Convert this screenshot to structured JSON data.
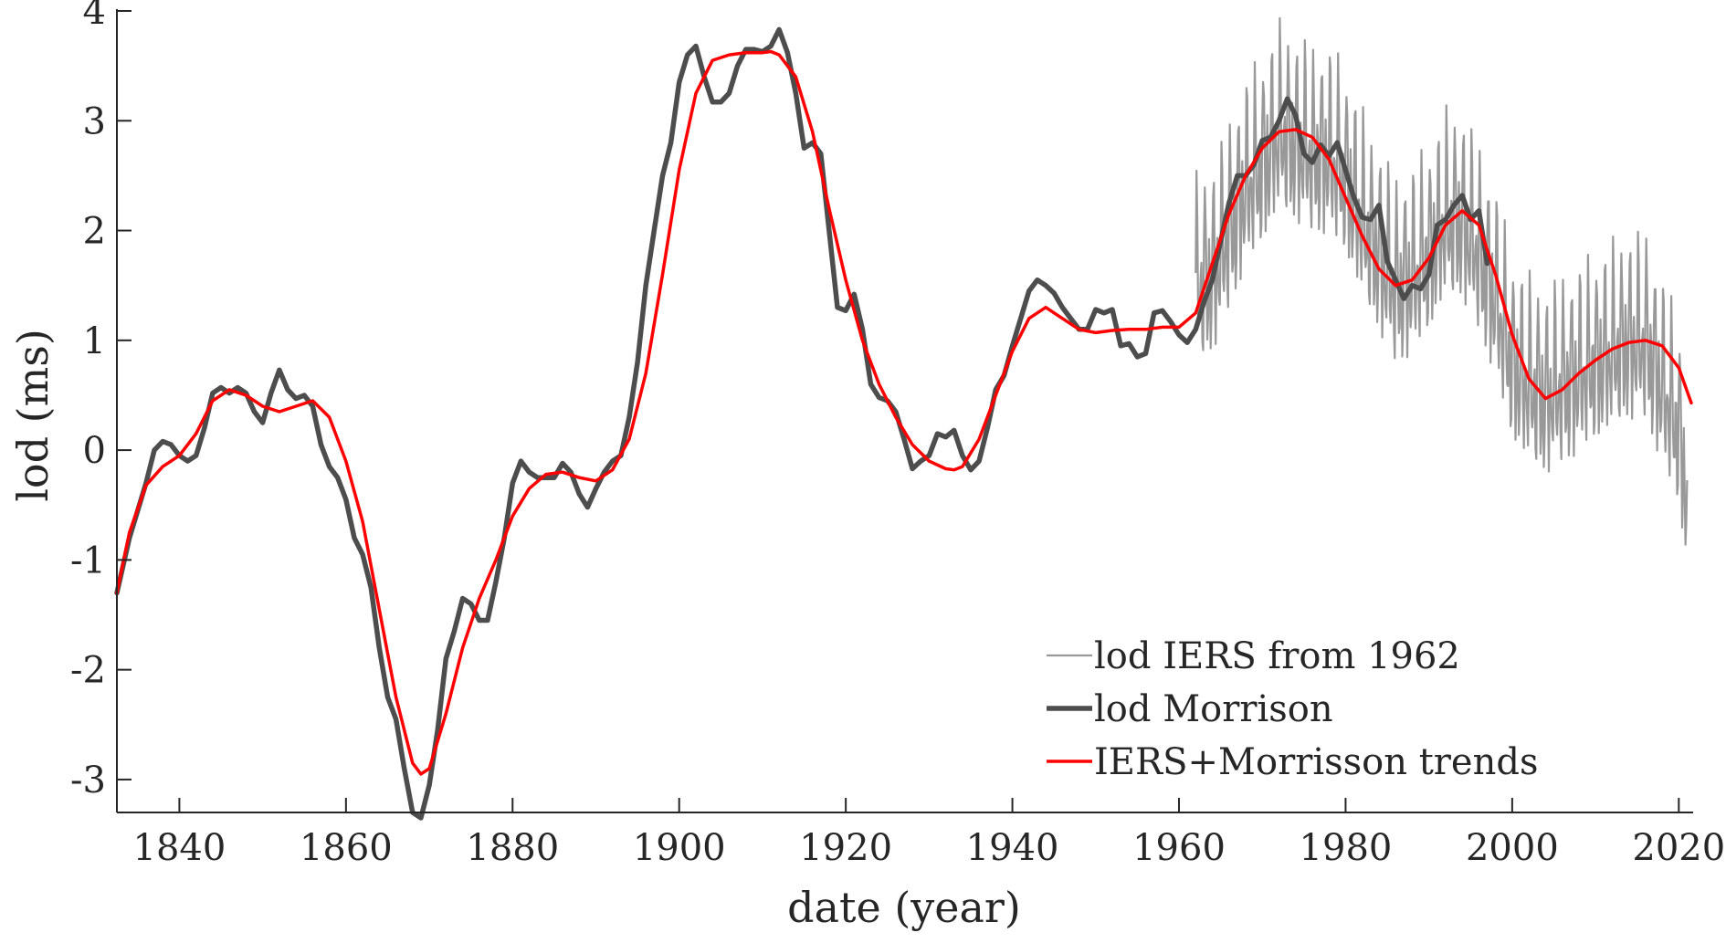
{
  "chart_data": {
    "type": "line",
    "xlabel": "date (year)",
    "ylabel": "lod (ms)",
    "xlim": [
      1832.5,
      2021.5
    ],
    "ylim": [
      -3.3,
      4.0
    ],
    "xticks": [
      1840,
      1860,
      1880,
      1900,
      1920,
      1940,
      1960,
      1980,
      2000,
      2020
    ],
    "yticks": [
      4,
      3,
      2,
      1,
      0,
      -1,
      -2,
      -3
    ],
    "grid": false,
    "legend_position": "bottom-right",
    "colors": {
      "iers": "#999999",
      "morrison": "#4d4d4d",
      "trend": "#ff0000",
      "axis": "#262626"
    },
    "series": [
      {
        "name": "lod IERS from 1962",
        "style": "thin",
        "x": [
          1962,
          1964,
          1966,
          1968,
          1970,
          1972,
          1974,
          1976,
          1978,
          1980,
          1982,
          1984,
          1986,
          1988,
          1990,
          1992,
          1994,
          1996,
          1998,
          2000,
          2002,
          2004,
          2006,
          2008,
          2010,
          2012,
          2014,
          2016,
          2018,
          2020,
          2021
        ],
        "y": [
          1.5,
          1.6,
          2.0,
          2.4,
          2.6,
          2.9,
          2.8,
          2.7,
          2.7,
          2.5,
          2.1,
          1.8,
          1.5,
          1.6,
          1.8,
          2.1,
          2.1,
          1.8,
          1.4,
          0.8,
          0.6,
          0.5,
          0.6,
          0.7,
          0.8,
          0.9,
          1.0,
          1.0,
          0.6,
          0.2,
          -0.4
        ]
      },
      {
        "name": "lod Morrison",
        "style": "thick",
        "x": [
          1832.5,
          1834,
          1836,
          1837,
          1838,
          1839,
          1840,
          1841,
          1842,
          1843,
          1844,
          1845,
          1846,
          1847,
          1848,
          1849,
          1850,
          1851,
          1852,
          1853,
          1854,
          1855,
          1856,
          1857,
          1858,
          1859,
          1860,
          1861,
          1862,
          1863,
          1864,
          1865,
          1866,
          1867,
          1868,
          1869,
          1870,
          1871,
          1872,
          1873,
          1874,
          1875,
          1876,
          1877,
          1878,
          1879,
          1880,
          1881,
          1882,
          1883,
          1884,
          1885,
          1886,
          1887,
          1888,
          1889,
          1890,
          1891,
          1892,
          1893,
          1894,
          1895,
          1896,
          1897,
          1898,
          1899,
          1900,
          1901,
          1902,
          1903,
          1904,
          1905,
          1906,
          1907,
          1908,
          1909,
          1910,
          1911,
          1912,
          1913,
          1914,
          1915,
          1916,
          1917,
          1918,
          1919,
          1920,
          1921,
          1922,
          1923,
          1924,
          1925,
          1926,
          1927,
          1928,
          1929,
          1930,
          1931,
          1932,
          1933,
          1934,
          1935,
          1936,
          1937,
          1938,
          1939,
          1940,
          1941,
          1942,
          1943,
          1944,
          1945,
          1946,
          1947,
          1948,
          1949,
          1950,
          1951,
          1952,
          1953,
          1954,
          1955,
          1956,
          1957,
          1958,
          1959,
          1960,
          1961,
          1962,
          1963,
          1964,
          1965,
          1966,
          1967,
          1968,
          1969,
          1970,
          1971,
          1972,
          1973,
          1974,
          1975,
          1976,
          1977,
          1978,
          1979,
          1980,
          1981,
          1982,
          1983,
          1984,
          1985,
          1986,
          1987,
          1988,
          1989,
          1990,
          1991,
          1992,
          1993,
          1994,
          1995,
          1996,
          1997
        ],
        "y": [
          -1.3,
          -0.8,
          -0.3,
          0.0,
          0.08,
          0.05,
          -0.05,
          -0.1,
          -0.05,
          0.2,
          0.52,
          0.57,
          0.52,
          0.57,
          0.52,
          0.35,
          0.25,
          0.52,
          0.73,
          0.55,
          0.47,
          0.5,
          0.4,
          0.05,
          -0.15,
          -0.25,
          -0.45,
          -0.8,
          -0.95,
          -1.25,
          -1.8,
          -2.25,
          -2.45,
          -2.9,
          -3.3,
          -3.35,
          -3.05,
          -2.55,
          -1.9,
          -1.65,
          -1.35,
          -1.4,
          -1.55,
          -1.55,
          -1.2,
          -0.8,
          -0.3,
          -0.1,
          -0.2,
          -0.25,
          -0.25,
          -0.25,
          -0.12,
          -0.2,
          -0.4,
          -0.52,
          -0.35,
          -0.2,
          -0.1,
          -0.05,
          0.3,
          0.8,
          1.5,
          2.0,
          2.5,
          2.8,
          3.35,
          3.6,
          3.68,
          3.4,
          3.17,
          3.17,
          3.25,
          3.5,
          3.65,
          3.65,
          3.63,
          3.68,
          3.83,
          3.62,
          3.25,
          2.75,
          2.8,
          2.7,
          2.0,
          1.3,
          1.27,
          1.42,
          1.1,
          0.6,
          0.48,
          0.45,
          0.35,
          0.1,
          -0.17,
          -0.1,
          -0.05,
          0.15,
          0.12,
          0.18,
          -0.05,
          -0.18,
          -0.1,
          0.2,
          0.55,
          0.68,
          0.95,
          1.2,
          1.45,
          1.55,
          1.5,
          1.43,
          1.3,
          1.2,
          1.1,
          1.1,
          1.28,
          1.25,
          1.28,
          0.95,
          0.97,
          0.85,
          0.88,
          1.25,
          1.27,
          1.17,
          1.05,
          0.98,
          1.1,
          1.35,
          1.55,
          1.9,
          2.25,
          2.5,
          2.5,
          2.6,
          2.82,
          2.85,
          3.0,
          3.2,
          3.05,
          2.7,
          2.62,
          2.78,
          2.68,
          2.8,
          2.55,
          2.3,
          2.12,
          2.1,
          2.23,
          1.72,
          1.55,
          1.38,
          1.5,
          1.47,
          1.6,
          2.05,
          2.1,
          2.23,
          2.32,
          2.1,
          2.18,
          1.7
        ]
      },
      {
        "name": "IERS+Morrisson trends",
        "style": "smooth",
        "x": [
          1832.5,
          1834,
          1836,
          1838,
          1840,
          1842,
          1844,
          1846,
          1848,
          1850,
          1852,
          1854,
          1856,
          1858,
          1860,
          1862,
          1864,
          1866,
          1868,
          1869,
          1870,
          1872,
          1874,
          1876,
          1878,
          1880,
          1882,
          1884,
          1886,
          1888,
          1890,
          1892,
          1894,
          1896,
          1898,
          1900,
          1902,
          1904,
          1906,
          1908,
          1910,
          1911,
          1912,
          1914,
          1916,
          1918,
          1920,
          1922,
          1924,
          1926,
          1928,
          1930,
          1932,
          1933,
          1934,
          1936,
          1938,
          1940,
          1942,
          1944,
          1946,
          1948,
          1950,
          1952,
          1954,
          1956,
          1958,
          1960,
          1962,
          1964,
          1966,
          1968,
          1970,
          1972,
          1974,
          1976,
          1978,
          1980,
          1982,
          1984,
          1986,
          1988,
          1990,
          1992,
          1994,
          1996,
          1998,
          2000,
          2002,
          2004,
          2006,
          2008,
          2010,
          2012,
          2014,
          2016,
          2018,
          2020,
          2021.5
        ],
        "y": [
          -1.3,
          -0.75,
          -0.32,
          -0.15,
          -0.05,
          0.15,
          0.45,
          0.55,
          0.5,
          0.4,
          0.35,
          0.4,
          0.45,
          0.3,
          -0.1,
          -0.65,
          -1.45,
          -2.25,
          -2.85,
          -2.95,
          -2.9,
          -2.4,
          -1.8,
          -1.35,
          -1.0,
          -0.6,
          -0.35,
          -0.22,
          -0.2,
          -0.25,
          -0.28,
          -0.18,
          0.1,
          0.7,
          1.6,
          2.55,
          3.25,
          3.55,
          3.6,
          3.62,
          3.62,
          3.63,
          3.6,
          3.4,
          2.9,
          2.2,
          1.55,
          1.0,
          0.6,
          0.3,
          0.05,
          -0.1,
          -0.17,
          -0.18,
          -0.15,
          0.1,
          0.5,
          0.9,
          1.2,
          1.3,
          1.2,
          1.1,
          1.07,
          1.09,
          1.1,
          1.1,
          1.12,
          1.12,
          1.25,
          1.7,
          2.15,
          2.5,
          2.75,
          2.9,
          2.92,
          2.85,
          2.65,
          2.3,
          1.95,
          1.65,
          1.5,
          1.55,
          1.75,
          2.05,
          2.18,
          2.05,
          1.6,
          1.05,
          0.65,
          0.47,
          0.55,
          0.7,
          0.82,
          0.92,
          0.98,
          1.0,
          0.95,
          0.75,
          0.43
        ]
      }
    ]
  }
}
